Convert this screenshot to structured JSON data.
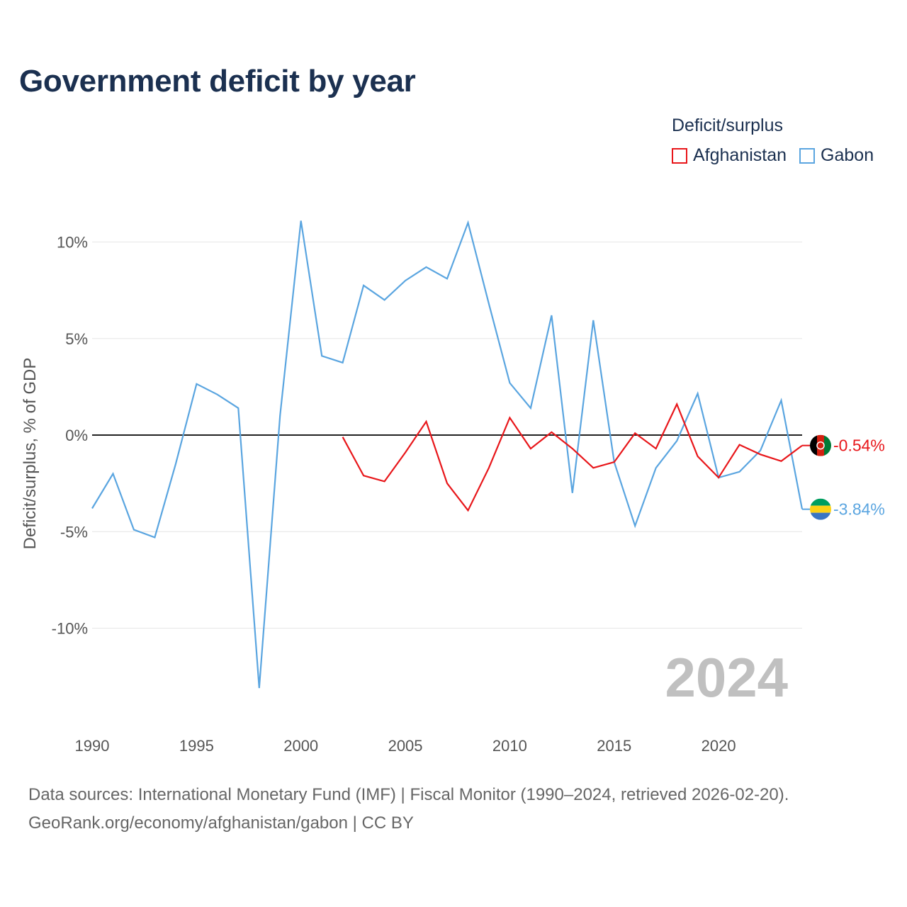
{
  "title": "Government deficit by year",
  "legend": {
    "title": "Deficit/surplus",
    "items": [
      {
        "name": "Afghanistan",
        "color": "#e8161a"
      },
      {
        "name": "Gabon",
        "color": "#5aa5e0"
      }
    ]
  },
  "footer": {
    "line1": "Data sources: International Monetary Fund (IMF) | Fiscal Monitor (1990–2024, retrieved 2026-02-20).",
    "line2": "GeoRank.org/economy/afghanistan/gabon | CC BY"
  },
  "chart_data": {
    "type": "line",
    "title": "Government deficit by year",
    "xlabel": "",
    "ylabel": "Deficit/surplus, % of GDP",
    "xlim": [
      1990,
      2024
    ],
    "ylim": [
      -14,
      12
    ],
    "x_ticks": [
      1990,
      1995,
      2000,
      2005,
      2010,
      2015,
      2020
    ],
    "x_tick_labels": [
      "1990",
      "1995",
      "2000",
      "2005",
      "2010",
      "2015",
      "2020"
    ],
    "y_ticks": [
      10,
      5,
      0,
      -5,
      -10
    ],
    "y_tick_labels": [
      "10%",
      "5%",
      "0%",
      "-5%",
      "-10%"
    ],
    "grid": true,
    "zero_line": true,
    "watermark_year": "2024",
    "series": [
      {
        "name": "Afghanistan",
        "color": "#e8161a",
        "end_label": "-0.54%",
        "flag": "afghanistan-flag",
        "x": [
          2002,
          2003,
          2004,
          2005,
          2006,
          2007,
          2008,
          2009,
          2010,
          2011,
          2012,
          2013,
          2014,
          2015,
          2016,
          2017,
          2018,
          2019,
          2020,
          2021,
          2022,
          2023,
          2024
        ],
        "values": [
          -0.1,
          -2.1,
          -2.4,
          -0.9,
          0.7,
          -2.5,
          -3.9,
          -1.7,
          0.9,
          -0.7,
          0.15,
          -0.7,
          -1.7,
          -1.4,
          0.1,
          -0.7,
          1.6,
          -1.1,
          -2.2,
          -0.5,
          -1.0,
          -1.35,
          -0.54
        ]
      },
      {
        "name": "Gabon",
        "color": "#5aa5e0",
        "end_label": "-3.84%",
        "flag": "gabon-flag",
        "x": [
          1990,
          1991,
          1992,
          1993,
          1994,
          1995,
          1996,
          1997,
          1998,
          1999,
          2000,
          2001,
          2002,
          2003,
          2004,
          2005,
          2006,
          2007,
          2008,
          2009,
          2010,
          2011,
          2012,
          2013,
          2014,
          2015,
          2016,
          2017,
          2018,
          2019,
          2020,
          2021,
          2022,
          2023,
          2024
        ],
        "values": [
          -3.8,
          -2.0,
          -4.9,
          -5.3,
          -1.5,
          2.65,
          2.1,
          1.4,
          -13.1,
          1.0,
          11.1,
          4.1,
          3.75,
          7.75,
          7.0,
          8.0,
          8.7,
          8.1,
          11.0,
          6.8,
          2.7,
          1.4,
          6.2,
          -3.0,
          5.95,
          -1.4,
          -4.7,
          -1.7,
          -0.3,
          2.15,
          -2.2,
          -1.9,
          -0.8,
          1.8,
          -3.84
        ]
      }
    ]
  }
}
